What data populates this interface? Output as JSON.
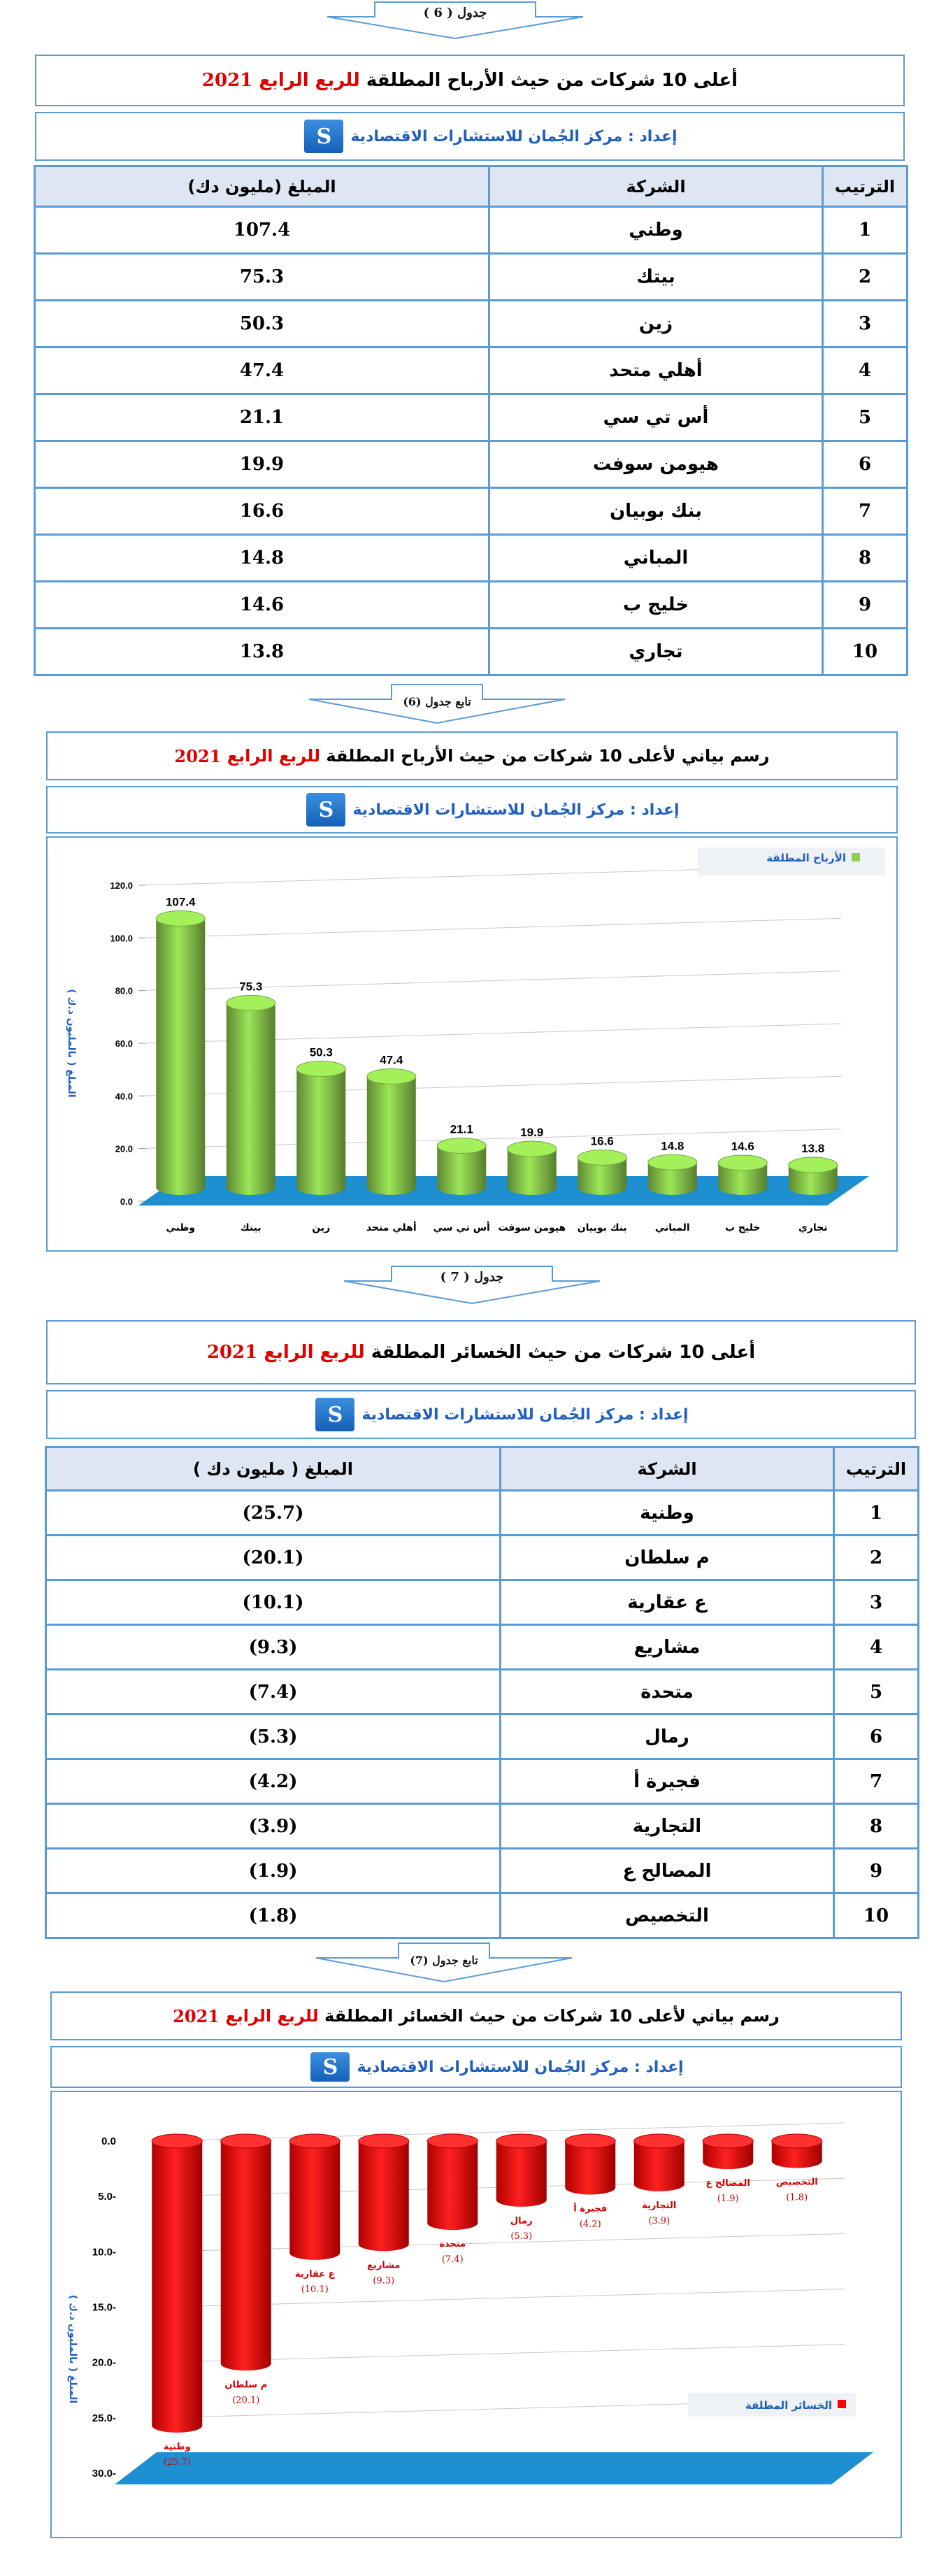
{
  "section1": {
    "arrow_label": "جدول ( 6 )",
    "title_prefix": "أعلى 10 شركات من حيث الأرباح المطلقة",
    "title_highlight": "للربع الرابع",
    "title_year": "2021",
    "credit": "إعداد : مركز الجُمان للاستشارات الاقتصادية",
    "headers": {
      "rank": "الترتيب",
      "company": "الشركة",
      "amount": "المبلغ (مليون دك)"
    },
    "rows": [
      {
        "rank": "1",
        "company": "وطني",
        "amount": "107.4"
      },
      {
        "rank": "2",
        "company": "بيتك",
        "amount": "75.3"
      },
      {
        "rank": "3",
        "company": "زين",
        "amount": "50.3"
      },
      {
        "rank": "4",
        "company": "أهلي متحد",
        "amount": "47.4"
      },
      {
        "rank": "5",
        "company": "أس تي سي",
        "amount": "21.1"
      },
      {
        "rank": "6",
        "company": "هيومن سوفت",
        "amount": "19.9"
      },
      {
        "rank": "7",
        "company": "بنك بوبيان",
        "amount": "16.6"
      },
      {
        "rank": "8",
        "company": "المباني",
        "amount": "14.8"
      },
      {
        "rank": "9",
        "company": "خليج ب",
        "amount": "14.6"
      },
      {
        "rank": "10",
        "company": "تجاري",
        "amount": "13.8"
      }
    ]
  },
  "section2": {
    "arrow_label": "تابع جدول (6)",
    "title_prefix": "رسم بياني لأعلى 10 شركات من حيث الأرباح المطلقة",
    "title_highlight": "للربع الرابع",
    "title_year": "2021",
    "credit": "إعداد : مركز الجُمان للاستشارات الاقتصادية"
  },
  "section3": {
    "arrow_label": "جدول ( 7 )",
    "title_prefix": "أعلى 10 شركات من حيث الخسائر المطلقة",
    "title_highlight": "للربع الرابع",
    "title_year": "2021",
    "credit": "إعداد : مركز الجُمان للاستشارات الاقتصادية",
    "headers": {
      "rank": "الترتيب",
      "company": "الشركة",
      "amount": "المبلغ ( مليون دك )"
    },
    "rows": [
      {
        "rank": "1",
        "company": "وطنية",
        "amount": "(25.7)"
      },
      {
        "rank": "2",
        "company": "م سلطان",
        "amount": "(20.1)"
      },
      {
        "rank": "3",
        "company": "ع عقارية",
        "amount": "(10.1)"
      },
      {
        "rank": "4",
        "company": "مشاريع",
        "amount": "(9.3)"
      },
      {
        "rank": "5",
        "company": "متحدة",
        "amount": "(7.4)"
      },
      {
        "rank": "6",
        "company": "رمال",
        "amount": "(5.3)"
      },
      {
        "rank": "7",
        "company": "فجيرة أ",
        "amount": "(4.2)"
      },
      {
        "rank": "8",
        "company": "التجارية",
        "amount": "(3.9)"
      },
      {
        "rank": "9",
        "company": "المصالح ع",
        "amount": "(1.9)"
      },
      {
        "rank": "10",
        "company": "التخصيص",
        "amount": "(1.8)"
      }
    ]
  },
  "section4": {
    "arrow_label": "تابع جدول (7)",
    "title_prefix": "رسم بياني لأعلى 10 شركات من حيث الخسائر المطلقة",
    "title_highlight": "للربع الرابع",
    "title_year": "2021",
    "credit": "إعداد : مركز الجُمان للاستشارات الاقتصادية"
  },
  "logo_glyph": "S",
  "colors": {
    "border": "#5b9bd5",
    "header_bg": "#dde6f2",
    "highlight_red": "#e00000",
    "credit_blue": "#1f5fbf",
    "bar_green": "#8fd14f",
    "bar_red": "#ff0000",
    "floor_blue": "#1e8fd0"
  },
  "chart_data": [
    {
      "type": "bar",
      "categories": [
        "وطني",
        "بيتك",
        "زين",
        "أهلي متحد",
        "أس تي سي",
        "هيومن سوفت",
        "بنك بوبيان",
        "المباني",
        "خليج ب",
        "تجاري"
      ],
      "series": [
        {
          "name": "الأرباح المطلقة",
          "values": [
            107.4,
            75.3,
            50.3,
            47.4,
            21.1,
            19.9,
            16.6,
            14.8,
            14.6,
            13.8
          ]
        }
      ],
      "data_labels": [
        "107.4",
        "75.3",
        "50.3",
        "47.4",
        "21.1",
        "19.9",
        "16.6",
        "14.8",
        "14.6",
        "13.8"
      ],
      "ylabel": "المبلغ ( بالمليون د.ك )",
      "ylim": [
        0,
        120
      ],
      "yticks": [
        "0.0",
        "20.0",
        "40.0",
        "60.0",
        "80.0",
        "100.0",
        "120.0"
      ],
      "legend": "top-right",
      "grid": true
    },
    {
      "type": "bar",
      "categories": [
        "وطنية",
        "م سلطان",
        "ع عقارية",
        "مشاريع",
        "متحدة",
        "رمال",
        "فجيرة أ",
        "التجارية",
        "المصالح ع",
        "التخصيص"
      ],
      "series": [
        {
          "name": "الخسائر المطلقة",
          "values": [
            -25.7,
            -20.1,
            -10.1,
            -9.3,
            -7.4,
            -5.3,
            -4.2,
            -3.9,
            -1.9,
            -1.8
          ]
        }
      ],
      "data_labels": [
        "(25.7)",
        "(20.1)",
        "(10.1)",
        "(9.3)",
        "(7.4)",
        "(5.3)",
        "(4.2)",
        "(3.9)",
        "(1.9)",
        "(1.8)"
      ],
      "ylabel": "المبلغ ( بالمليون د.ك )",
      "ylim": [
        -30,
        0
      ],
      "yticks": [
        "0.0",
        "5.0-",
        "10.0-",
        "15.0-",
        "20.0-",
        "25.0-",
        "30.0-"
      ],
      "legend": "bottom-right",
      "grid": true
    }
  ]
}
